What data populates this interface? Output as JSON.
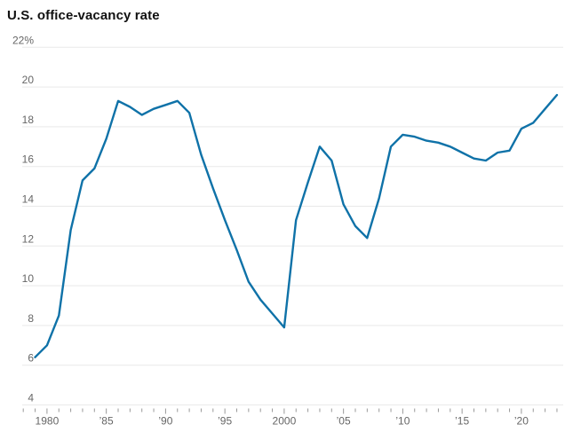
{
  "title": "U.S. office-vacancy rate",
  "chart_data": {
    "type": "line",
    "title": "U.S. office-vacancy rate",
    "xlabel": "",
    "ylabel": "",
    "ylim": [
      4,
      22
    ],
    "xlim": [
      1978,
      2023.8
    ],
    "grid": "horizontal",
    "legend": "none",
    "line_color": "#0f72a8",
    "line_width": 2.4,
    "y_ticks": [
      {
        "value": 22,
        "label": "22%"
      },
      {
        "value": 20,
        "label": "20"
      },
      {
        "value": 18,
        "label": "18"
      },
      {
        "value": 16,
        "label": "16"
      },
      {
        "value": 14,
        "label": "14"
      },
      {
        "value": 12,
        "label": "12"
      },
      {
        "value": 10,
        "label": "10"
      },
      {
        "value": 8,
        "label": "8"
      },
      {
        "value": 6,
        "label": "6"
      },
      {
        "value": 4,
        "label": "4"
      }
    ],
    "x_tick_labels": [
      {
        "year": 1980,
        "label": "1980"
      },
      {
        "year": 1985,
        "label": "’85"
      },
      {
        "year": 1990,
        "label": "’90"
      },
      {
        "year": 1995,
        "label": "’95"
      },
      {
        "year": 2000,
        "label": "2000"
      },
      {
        "year": 2005,
        "label": "’05"
      },
      {
        "year": 2010,
        "label": "’10"
      },
      {
        "year": 2015,
        "label": "’15"
      },
      {
        "year": 2020,
        "label": "’20"
      }
    ],
    "minor_tick_years": {
      "start": 1978,
      "end": 2023
    },
    "series": [
      {
        "name": "U.S. office-vacancy rate",
        "x": [
          1979,
          1980,
          1981,
          1982,
          1983,
          1984,
          1985,
          1986,
          1987,
          1988,
          1989,
          1990,
          1991,
          1992,
          1993,
          1994,
          1995,
          1996,
          1997,
          1998,
          1999,
          2000,
          2001,
          2002,
          2003,
          2004,
          2005,
          2006,
          2007,
          2008,
          2009,
          2010,
          2011,
          2012,
          2013,
          2014,
          2015,
          2016,
          2017,
          2018,
          2019,
          2020,
          2021,
          2022,
          2023
        ],
        "values": [
          6.4,
          7.0,
          8.5,
          12.8,
          15.3,
          15.9,
          17.4,
          19.3,
          19.0,
          18.6,
          18.9,
          19.1,
          19.3,
          18.7,
          16.6,
          14.9,
          13.3,
          11.8,
          10.2,
          9.3,
          8.6,
          7.9,
          13.3,
          15.2,
          17.0,
          16.3,
          14.1,
          13.0,
          12.4,
          14.4,
          17.0,
          17.6,
          17.5,
          17.3,
          17.2,
          17.0,
          16.7,
          16.4,
          16.3,
          16.7,
          16.8,
          17.9,
          18.2,
          18.9,
          19.6
        ]
      }
    ],
    "colors": {
      "line": "#0f72a8",
      "grid": "#e9e9e9",
      "tick": "#999999",
      "axis_text": "#666666",
      "title_text": "#111111",
      "background": "#ffffff"
    }
  }
}
